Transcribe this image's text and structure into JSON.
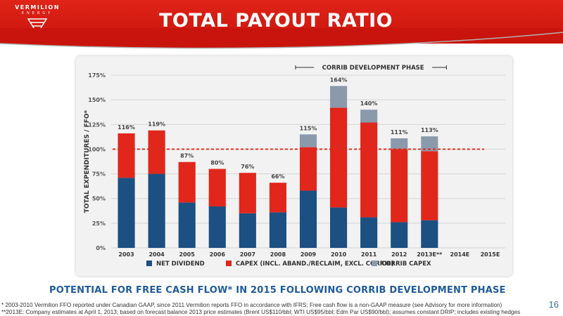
{
  "brand": {
    "name": "VERMILION",
    "sub": "ENERGY"
  },
  "title": "TOTAL PAYOUT RATIO",
  "banner": "POTENTIAL FOR FREE CASH FLOW* IN 2015 FOLLOWING CORRIB DEVELOPMENT PHASE",
  "footnotes": [
    "*  2003-2010 Vermilion FFO reported under Canadian GAAP, since 2011 Vermilion reports FFO in accordance with IFRS; Free cash flow is a non-GAAP measure (see Advisory for more information)",
    "**2013E: Company estimates at April 1, 2013; based on forecast balance 2013 price estimates (Brent US$110/bbl; WTI US$95/bbl; Edm Par US$90/bbl); assumes constant DRIP; includes existing hedges"
  ],
  "page_number": "16",
  "colors": {
    "brand_red": "#d21e14",
    "net_dividend": "#1c4f82",
    "capex": "#e1261b",
    "corrib_capex": "#8a9aab",
    "reference_line": "#e1261b"
  },
  "chart_data": {
    "type": "bar",
    "stacked": true,
    "categories": [
      "2003",
      "2004",
      "2005",
      "2006",
      "2007",
      "2008",
      "2009",
      "2010",
      "2011",
      "2012",
      "2013E**",
      "2014E",
      "2015E"
    ],
    "series": [
      {
        "name": "NET DIVIDEND",
        "values": [
          71,
          75,
          46,
          42,
          35,
          36,
          58,
          41,
          31,
          26,
          28,
          null,
          null
        ]
      },
      {
        "name": "CAPEX (INCL. ABAND./RECLAIM, EXCL. CORRIB)",
        "values": [
          45,
          44,
          41,
          38,
          41,
          30,
          44,
          101,
          96,
          74,
          70,
          null,
          null
        ]
      },
      {
        "name": "CORRIB CAPEX",
        "values": [
          0,
          0,
          0,
          0,
          0,
          0,
          13,
          22,
          13,
          11,
          15,
          null,
          null
        ]
      }
    ],
    "totals": [
      "116%",
      "119%",
      "87%",
      "80%",
      "76%",
      "66%",
      "115%",
      "164%",
      "140%",
      "111%",
      "113%",
      null,
      null
    ],
    "ylabel": "TOTAL EXPENDITURES / FFO*",
    "ylim": [
      0,
      175
    ],
    "yticks": [
      "0%",
      "25%",
      "50%",
      "75%",
      "100%",
      "125%",
      "150%",
      "175%"
    ],
    "reference_line": 100,
    "annotation": "CORRIB DEVELOPMENT PHASE",
    "annotation_span": [
      "2009",
      "2013E**"
    ],
    "grid": true,
    "legend_position": "bottom"
  }
}
